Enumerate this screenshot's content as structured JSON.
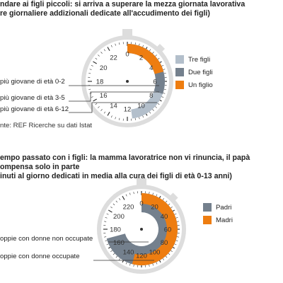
{
  "colors": {
    "orange": "#ee7d10",
    "slate": "#74808d",
    "light": "#b3bfcb",
    "frame": "#dddddd",
    "ink": "#333333"
  },
  "chart1": {
    "title1": "ndare ai figli piccoli: si arriva a superare la mezza giornata lavorativa",
    "title2": "re giornaliere addizionali dedicate all'accudimento dei figli)",
    "source": "nte: REF Ricerche su dati Istat",
    "rows": [
      {
        "label": "più giovane di età 0-2"
      },
      {
        "label": "più giovane di età 3-5"
      },
      {
        "label": "più giovane di età 6-12"
      }
    ],
    "legend": [
      {
        "name": "Tre figli",
        "color": "#b3bfcb"
      },
      {
        "name": "Due figli",
        "color": "#74808d"
      },
      {
        "name": "Un figlio",
        "color": "#ee7d10"
      }
    ],
    "dial_labels": [
      "22",
      "0",
      "2",
      "4",
      "6",
      "8",
      "10",
      "12",
      "14",
      "16",
      "18",
      "20"
    ]
  },
  "chart2": {
    "title1": "empo passato con i figli: la mamma lavoratrice non vi rinuncia, il papà",
    "title2": "ompensa solo in parte",
    "title3": "inuti al giorno dedicati in media alla cura dei figli di età 0-13 anni)",
    "rows": [
      {
        "label": "oppie con donne non occupate"
      },
      {
        "label": "oppie con donne occupate"
      }
    ],
    "legend": [
      {
        "name": "Padri",
        "color": "#74808d"
      },
      {
        "name": "Madri",
        "color": "#ee7d10"
      }
    ],
    "dial_labels": [
      "0",
      "20",
      "40",
      "60",
      "80",
      "100",
      "120",
      "140",
      "160",
      "180",
      "200",
      "220"
    ]
  },
  "chart_data": [
    {
      "type": "bar",
      "title": "ndare ai figli piccoli: si arriva a superare la mezza giornata lavorativa",
      "ylabel": "ore giornaliere addizionali",
      "scale": [
        0,
        24
      ],
      "legend_position": "right",
      "categories": [
        "più giovane di età 0-2",
        "più giovane di età 3-5",
        "più giovane di età 6-12"
      ],
      "series": [
        {
          "name": "Un figlio",
          "values": [
            5.0,
            null,
            null
          ]
        },
        {
          "name": "Due figli",
          "values": [
            null,
            7.3,
            null
          ]
        },
        {
          "name": "Tre figli",
          "values": [
            null,
            null,
            11.5
          ]
        }
      ]
    },
    {
      "type": "bar",
      "title": "empo passato con i figli: la mamma lavoratrice non vi rinuncia, il papà",
      "ylabel": "minuti al giorno",
      "scale": [
        0,
        240
      ],
      "legend_position": "right",
      "categories": [
        "oppie con donne non occupate",
        "oppie con donne occupate"
      ],
      "series": [
        {
          "name": "Madri",
          "values": [
            130,
            null
          ]
        },
        {
          "name": "Padri",
          "values": [
            null,
            170
          ]
        }
      ]
    }
  ]
}
